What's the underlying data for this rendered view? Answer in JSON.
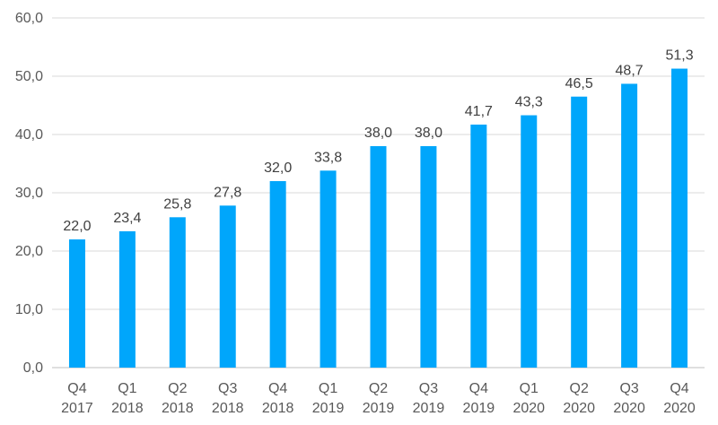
{
  "chart_data": {
    "type": "bar",
    "title": "",
    "xlabel": "",
    "ylabel": "",
    "ylim": [
      0,
      60
    ],
    "y_ticks": [
      "0,0",
      "10,0",
      "20,0",
      "30,0",
      "40,0",
      "50,0",
      "60,0"
    ],
    "y_tick_values": [
      0,
      10,
      20,
      30,
      40,
      50,
      60
    ],
    "grid": true,
    "legend": "none",
    "bar_color": "#00A6FB",
    "categories": [
      {
        "quarter": "Q4",
        "year": "2017"
      },
      {
        "quarter": "Q1",
        "year": "2018"
      },
      {
        "quarter": "Q2",
        "year": "2018"
      },
      {
        "quarter": "Q3",
        "year": "2018"
      },
      {
        "quarter": "Q4",
        "year": "2018"
      },
      {
        "quarter": "Q1",
        "year": "2019"
      },
      {
        "quarter": "Q2",
        "year": "2019"
      },
      {
        "quarter": "Q3",
        "year": "2019"
      },
      {
        "quarter": "Q4",
        "year": "2019"
      },
      {
        "quarter": "Q1",
        "year": "2020"
      },
      {
        "quarter": "Q2",
        "year": "2020"
      },
      {
        "quarter": "Q3",
        "year": "2020"
      },
      {
        "quarter": "Q4",
        "year": "2020"
      }
    ],
    "values": [
      22.0,
      23.4,
      25.8,
      27.8,
      32.0,
      33.8,
      38.0,
      38.0,
      41.7,
      43.3,
      46.5,
      48.7,
      51.3
    ],
    "value_labels": [
      "22,0",
      "23,4",
      "25,8",
      "27,8",
      "32,0",
      "33,8",
      "38,0",
      "38,0",
      "41,7",
      "43,3",
      "46,5",
      "48,7",
      "51,3"
    ]
  }
}
